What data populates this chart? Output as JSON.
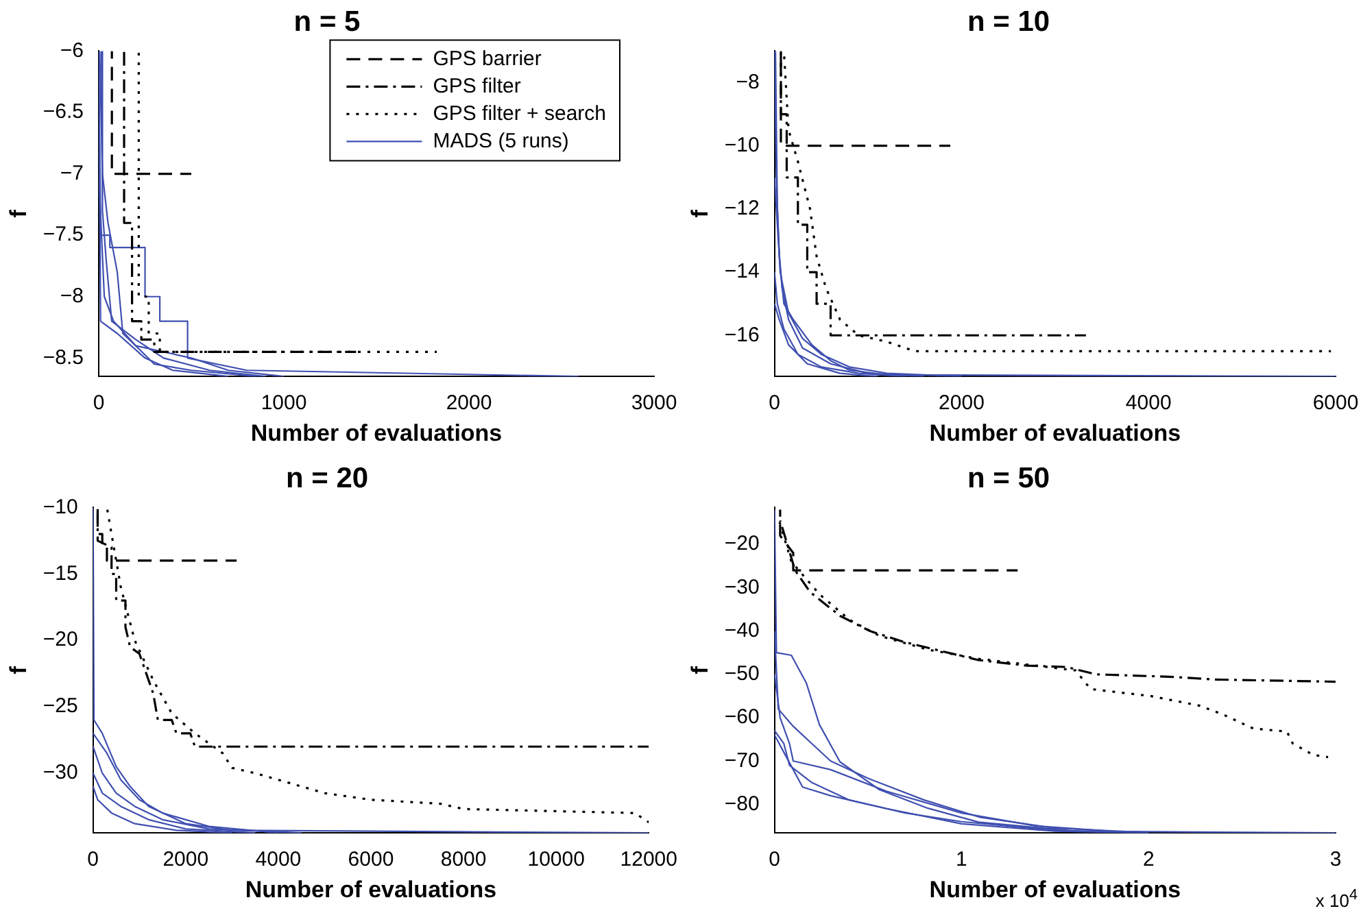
{
  "chart_data": [
    {
      "type": "line",
      "title": "n = 5",
      "xlabel": "Number of evaluations",
      "ylabel": "f",
      "xlim": [
        0,
        3000
      ],
      "xticks": [
        0,
        1000,
        2000,
        3000
      ],
      "ylim": [
        -8.65,
        -6
      ],
      "yticks": [
        -8.5,
        -8,
        -7.5,
        -7,
        -6.5,
        -6
      ],
      "grid": false,
      "legend": "top right",
      "marker": "none",
      "series": [
        {
          "name": "GPS barrier",
          "color": "#000000",
          "line_style": "dashed",
          "x": [
            71,
            71,
            500
          ],
          "values": [
            -6,
            -7,
            -7
          ]
        },
        {
          "name": "GPS filter",
          "color": "#000000",
          "line_style": "dashdot",
          "x": [
            137,
            137,
            180,
            180,
            230,
            230,
            300,
            300,
            1390
          ],
          "values": [
            -6,
            -7.4,
            -7.4,
            -8.2,
            -8.2,
            -8.35,
            -8.35,
            -8.45,
            -8.45
          ]
        },
        {
          "name": "GPS filter + search",
          "color": "#000000",
          "line_style": "dotted",
          "x": [
            216,
            216,
            270,
            270,
            330,
            330,
            1826
          ],
          "values": [
            -6,
            -8,
            -8,
            -8.3,
            -8.3,
            -8.45,
            -8.45
          ]
        },
        {
          "name": "MADS (5 runs)",
          "color": "#3f4fb0",
          "line_style": "solid",
          "x": [
            0,
            10,
            60,
            60,
            250,
            250,
            330,
            330,
            480,
            480,
            800,
            2590
          ],
          "values": [
            -6,
            -7.5,
            -7.5,
            -7.6,
            -7.6,
            -8,
            -8,
            -8.2,
            -8.2,
            -8.5,
            -8.6,
            -8.65
          ]
        },
        {
          "color": "#3f4fb0",
          "line_style": "solid",
          "x": [
            5,
            20,
            50,
            100,
            130,
            200,
            500,
            700,
            1000
          ],
          "values": [
            -6,
            -7,
            -7.4,
            -7.8,
            -8.3,
            -8.4,
            -8.5,
            -8.6,
            -8.65
          ]
        },
        {
          "color": "#3f4fb0",
          "line_style": "solid",
          "x": [
            15,
            20,
            40,
            70,
            200,
            350,
            600,
            900
          ],
          "values": [
            -6,
            -7.3,
            -7.7,
            -8.2,
            -8.35,
            -8.5,
            -8.6,
            -8.65
          ]
        },
        {
          "color": "#3f4fb0",
          "line_style": "solid",
          "x": [
            0,
            30,
            80,
            200,
            300,
            500,
            850
          ],
          "values": [
            -7,
            -8,
            -8.2,
            -8.4,
            -8.55,
            -8.6,
            -8.65
          ]
        },
        {
          "color": "#3f4fb0",
          "line_style": "solid",
          "x": [
            0,
            10,
            100,
            250,
            400,
            700
          ],
          "values": [
            -6,
            -8.2,
            -8.3,
            -8.5,
            -8.6,
            -8.65
          ]
        }
      ]
    },
    {
      "type": "line",
      "title": "n = 10",
      "xlabel": "Number of evaluations",
      "ylabel": "f",
      "xlim": [
        0,
        6000
      ],
      "xticks": [
        0,
        2000,
        4000,
        6000
      ],
      "ylim": [
        -17.3,
        -7
      ],
      "yticks": [
        -16,
        -14,
        -12,
        -10,
        -8
      ],
      "grid": false,
      "marker": "none",
      "series": [
        {
          "color": "#000000",
          "line_style": "dashed",
          "x": [
            68,
            68,
            1880
          ],
          "values": [
            -7,
            -10,
            -10
          ]
        },
        {
          "color": "#000000",
          "line_style": "dashdot",
          "x": [
            68,
            68,
            130,
            130,
            250,
            250,
            350,
            350,
            450,
            450,
            600,
            600,
            3330
          ],
          "values": [
            -7,
            -9,
            -9,
            -11,
            -11,
            -12.5,
            -12.5,
            -14,
            -14,
            -15,
            -15,
            -16,
            -16
          ]
        },
        {
          "color": "#000000",
          "line_style": "dotted",
          "x": [
            100,
            150,
            250,
            380,
            450,
            550,
            700,
            900,
            1200,
            1500,
            5950
          ],
          "values": [
            -7,
            -9.5,
            -10.5,
            -12,
            -13.5,
            -14.5,
            -15.5,
            -16,
            -16.2,
            -16.5,
            -16.5
          ]
        },
        {
          "color": "#3f4fb0",
          "line_style": "solid",
          "x": [
            0,
            20,
            50,
            100,
            200,
            400,
            600,
            800,
            1200,
            6000
          ],
          "values": [
            -7,
            -11,
            -13.5,
            -15,
            -15.5,
            -16.3,
            -16.8,
            -17.1,
            -17.25,
            -17.3
          ]
        },
        {
          "color": "#3f4fb0",
          "line_style": "solid",
          "x": [
            10,
            30,
            60,
            150,
            300,
            500,
            800,
            1200,
            2000
          ],
          "values": [
            -7,
            -12,
            -14,
            -15.3,
            -16.1,
            -16.6,
            -17,
            -17.2,
            -17.3
          ]
        },
        {
          "color": "#3f4fb0",
          "line_style": "solid",
          "x": [
            0,
            40,
            80,
            150,
            300,
            600,
            1000,
            1600
          ],
          "values": [
            -11,
            -13,
            -14.5,
            -15.5,
            -16.4,
            -16.9,
            -17.2,
            -17.3
          ]
        },
        {
          "color": "#3f4fb0",
          "line_style": "solid",
          "x": [
            0,
            30,
            100,
            250,
            500,
            900,
            1400
          ],
          "values": [
            -14,
            -15,
            -15.8,
            -16.6,
            -17,
            -17.2,
            -17.3
          ]
        },
        {
          "color": "#3f4fb0",
          "line_style": "solid",
          "x": [
            0,
            50,
            150,
            350,
            700,
            1100
          ],
          "values": [
            -15,
            -15.5,
            -16.3,
            -16.9,
            -17.2,
            -17.3
          ]
        }
      ]
    },
    {
      "type": "line",
      "title": "n = 20",
      "xlabel": "Number of evaluations",
      "ylabel": "f",
      "xlim": [
        0,
        12000
      ],
      "xticks": [
        0,
        2000,
        4000,
        6000,
        8000,
        10000,
        12000
      ],
      "ylim": [
        -34.5,
        -10
      ],
      "yticks": [
        -30,
        -25,
        -20,
        -15,
        -10
      ],
      "grid": false,
      "marker": "none",
      "series": [
        {
          "color": "#000000",
          "line_style": "dashed",
          "x": [
            100,
            100,
            200,
            200,
            300,
            300,
            3100
          ],
          "values": [
            -10,
            -12,
            -12,
            -13,
            -13,
            -14,
            -14
          ]
        },
        {
          "color": "#000000",
          "line_style": "dashdot",
          "x": [
            100,
            100,
            400,
            400,
            500,
            500,
            700,
            700,
            800,
            1000,
            1100,
            1300,
            1400,
            1700,
            1800,
            2100,
            2200,
            12000
          ],
          "values": [
            -10,
            -12.5,
            -13,
            -15,
            -15,
            -17,
            -17,
            -19,
            -20.5,
            -21,
            -22,
            -24,
            -26,
            -26,
            -27,
            -27,
            -28,
            -28
          ]
        },
        {
          "color": "#000000",
          "line_style": "dotted",
          "x": [
            300,
            600,
            900,
            1300,
            1700,
            2200,
            2800,
            3000,
            3500,
            4000,
            4500,
            5000,
            6000,
            7500,
            8000,
            11700,
            12000
          ],
          "values": [
            -10,
            -16,
            -20,
            -23,
            -25.5,
            -27,
            -28.5,
            -29.6,
            -30,
            -30.5,
            -31,
            -31.5,
            -32,
            -32.3,
            -32.7,
            -33,
            -33.7
          ]
        },
        {
          "color": "#3f4fb0",
          "line_style": "solid",
          "x": [
            0,
            20,
            200,
            500,
            800,
            1200,
            2000,
            3000,
            12000
          ],
          "values": [
            -10,
            -26,
            -27,
            -29.5,
            -31,
            -32.5,
            -33.8,
            -34.3,
            -34.5
          ]
        },
        {
          "color": "#3f4fb0",
          "line_style": "solid",
          "x": [
            0,
            300,
            600,
            1000,
            1500,
            2500,
            4000
          ],
          "values": [
            -27,
            -28.5,
            -30.5,
            -32,
            -33,
            -34,
            -34.5
          ]
        },
        {
          "color": "#3f4fb0",
          "line_style": "solid",
          "x": [
            0,
            200,
            500,
            900,
            1500,
            2500,
            4500
          ],
          "values": [
            -28,
            -30,
            -31.5,
            -32.5,
            -33.5,
            -34.2,
            -34.5
          ]
        },
        {
          "color": "#3f4fb0",
          "line_style": "solid",
          "x": [
            0,
            200,
            600,
            1200,
            2000,
            3500
          ],
          "values": [
            -30,
            -31.5,
            -32.5,
            -33.5,
            -34.2,
            -34.5
          ]
        },
        {
          "color": "#3f4fb0",
          "line_style": "solid",
          "x": [
            0,
            100,
            400,
            900,
            1800,
            3000
          ],
          "values": [
            -31,
            -32,
            -33,
            -33.8,
            -34.3,
            -34.5
          ]
        }
      ]
    },
    {
      "type": "line",
      "title": "n = 50",
      "xlabel": "Number of evaluations",
      "ylabel": "f",
      "annotations": [
        "x 10$^{4}$"
      ],
      "xlim": [
        0,
        3
      ],
      "xticks": [
        0,
        1,
        2,
        3
      ],
      "ylim": [
        -86.6,
        -11.5
      ],
      "yticks": [
        -80,
        -70,
        -60,
        -50,
        -40,
        -30,
        -20
      ],
      "grid": false,
      "marker": "none",
      "series": [
        {
          "color": "#000000",
          "line_style": "dashed",
          "x": [
            0.03,
            0.03,
            0.1,
            0.1,
            1.3
          ],
          "values": [
            -12,
            -18,
            -22,
            -26,
            -26
          ]
        },
        {
          "color": "#000000",
          "line_style": "dashdot",
          "x": [
            0.03,
            0.11,
            0.19,
            0.35,
            0.51,
            0.69,
            0.88,
            1.09,
            1.35,
            1.56,
            1.72,
            2.14,
            2.35,
            3
          ],
          "values": [
            -14.5,
            -26,
            -31,
            -36.5,
            -40,
            -42.5,
            -44.5,
            -46.7,
            -48,
            -48.3,
            -50,
            -50.6,
            -51.2,
            -51.7
          ]
        },
        {
          "color": "#000000",
          "line_style": "dotted",
          "x": [
            0.02,
            0.09,
            0.24,
            0.4,
            0.56,
            0.82,
            1.09,
            1.4,
            1.61,
            1.69,
            2.01,
            2.27,
            2.4,
            2.56,
            2.74,
            2.77,
            2.88,
            2.96
          ],
          "values": [
            -13.9,
            -24,
            -31.5,
            -37.4,
            -41.1,
            -44.3,
            -46.4,
            -48,
            -49.1,
            -53.4,
            -55,
            -57.2,
            -59.3,
            -62.5,
            -63.2,
            -65.9,
            -68.6,
            -69.1
          ]
        },
        {
          "color": "#3f4fb0",
          "line_style": "solid",
          "x": [
            0,
            0.01,
            0.09,
            0.17,
            0.24,
            0.35,
            0.56,
            0.82,
            1.09,
            1.61,
            3
          ],
          "values": [
            -12,
            -45,
            -45.6,
            -52,
            -61.6,
            -70.2,
            -76.6,
            -80.9,
            -84.1,
            -86.2,
            -86.6
          ]
        },
        {
          "color": "#3f4fb0",
          "line_style": "solid",
          "x": [
            0,
            0.02,
            0.1,
            0.2,
            0.3,
            0.5,
            0.8,
            1.1,
            1.5,
            2
          ],
          "values": [
            -40,
            -58,
            -62,
            -66,
            -70,
            -74,
            -79,
            -83,
            -85.5,
            -86.5
          ]
        },
        {
          "color": "#3f4fb0",
          "line_style": "solid",
          "x": [
            0,
            0.03,
            0.08,
            0.1,
            0.3,
            0.6,
            1,
            1.4,
            1.9
          ],
          "values": [
            -50,
            -60,
            -66,
            -70,
            -72,
            -77,
            -82,
            -85,
            -86.5
          ]
        },
        {
          "color": "#3f4fb0",
          "line_style": "solid",
          "x": [
            0,
            0.05,
            0.08,
            0.2,
            0.4,
            0.7,
            1,
            1.5,
            2
          ],
          "values": [
            -63,
            -66,
            -71,
            -75,
            -79,
            -82,
            -84,
            -86,
            -86.6
          ]
        },
        {
          "color": "#3f4fb0",
          "line_style": "solid",
          "x": [
            0,
            0.05,
            0.1,
            0.15,
            0.3,
            0.6,
            1,
            1.5,
            2
          ],
          "values": [
            -64,
            -68,
            -72,
            -76,
            -78,
            -81,
            -84.5,
            -86.2,
            -86.6
          ]
        }
      ]
    }
  ]
}
